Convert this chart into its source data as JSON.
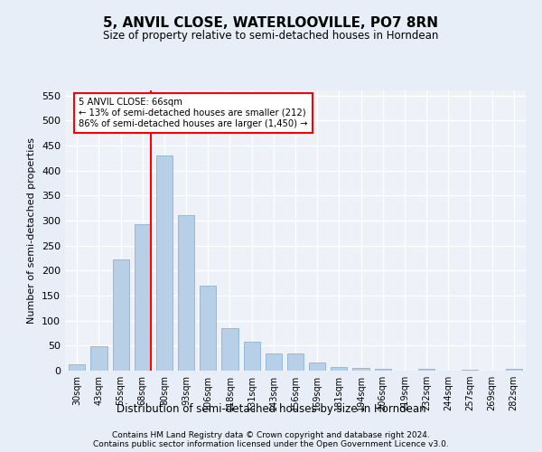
{
  "title": "5, ANVIL CLOSE, WATERLOOVILLE, PO7 8RN",
  "subtitle": "Size of property relative to semi-detached houses in Horndean",
  "xlabel": "Distribution of semi-detached houses by size in Horndean",
  "ylabel": "Number of semi-detached properties",
  "categories": [
    "30sqm",
    "43sqm",
    "55sqm",
    "68sqm",
    "80sqm",
    "93sqm",
    "106sqm",
    "118sqm",
    "131sqm",
    "143sqm",
    "156sqm",
    "169sqm",
    "181sqm",
    "194sqm",
    "206sqm",
    "219sqm",
    "232sqm",
    "244sqm",
    "257sqm",
    "269sqm",
    "282sqm"
  ],
  "values": [
    12,
    48,
    222,
    292,
    430,
    310,
    170,
    85,
    58,
    35,
    35,
    17,
    7,
    5,
    4,
    0,
    3,
    0,
    2,
    0,
    4
  ],
  "bar_color": "#b8cfe8",
  "bar_edgecolor": "#7aaad4",
  "vline_x_index": 3,
  "vline_color": "red",
  "annotation_text": "5 ANVIL CLOSE: 66sqm\n← 13% of semi-detached houses are smaller (212)\n86% of semi-detached houses are larger (1,450) →",
  "annotation_box_color": "white",
  "annotation_box_edgecolor": "red",
  "ylim": [
    0,
    560
  ],
  "yticks": [
    0,
    50,
    100,
    150,
    200,
    250,
    300,
    350,
    400,
    450,
    500,
    550
  ],
  "footer1": "Contains HM Land Registry data © Crown copyright and database right 2024.",
  "footer2": "Contains public sector information licensed under the Open Government Licence v3.0.",
  "bg_color": "#e8eef7",
  "plot_bg_color": "#eef2f8",
  "bar_width": 0.75
}
